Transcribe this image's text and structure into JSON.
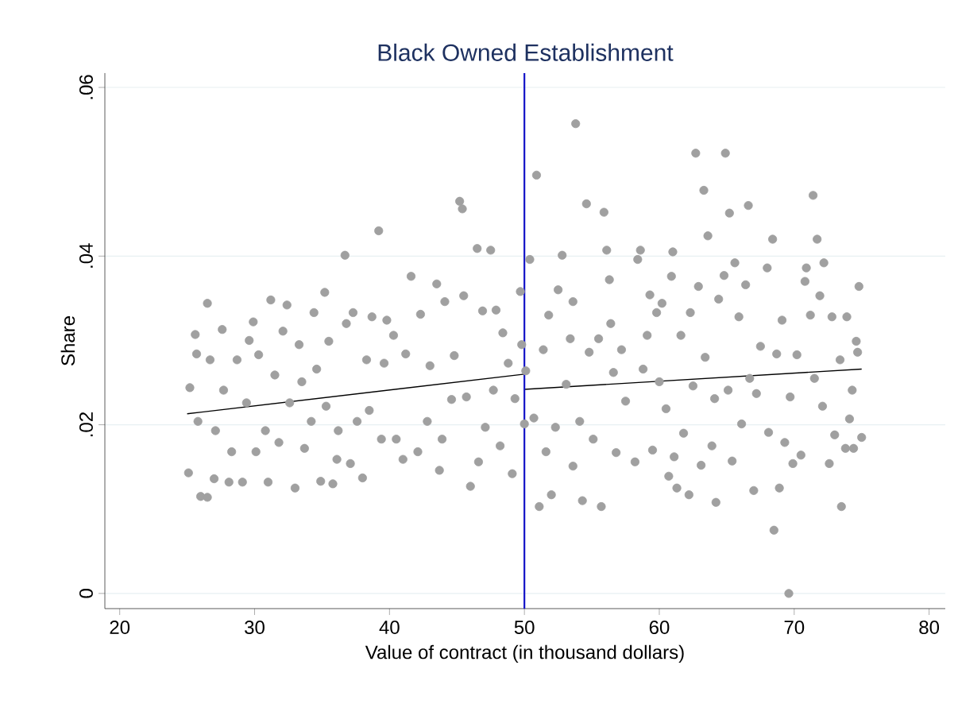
{
  "chart_data": {
    "type": "scatter",
    "title": "Black Owned Establishment",
    "xlabel": "Value of contract (in thousand dollars)",
    "ylabel": "Share",
    "xlim": [
      18.9,
      81.2
    ],
    "ylim": [
      -0.0018,
      0.0617
    ],
    "xticks": [
      20,
      30,
      40,
      50,
      60,
      70,
      80
    ],
    "yticks": [
      0,
      {
        "value": 0.02,
        "label": ".02"
      },
      {
        "value": 0.04,
        "label": ".04"
      },
      {
        "value": 0.06,
        "label": ".06"
      }
    ],
    "grid": "y",
    "ref_lines": [
      {
        "axis": "x",
        "value": 50,
        "color": "#1414c8"
      }
    ],
    "series": [
      {
        "marker": "circle",
        "color": "#a0a0a0",
        "x": [
          25.1,
          25.2,
          25.6,
          25.7,
          25.8,
          26.0,
          26.5,
          26.5,
          26.7,
          27.0,
          27.1,
          27.6,
          27.7,
          28.1,
          28.3,
          28.7,
          29.1,
          29.4,
          29.6,
          29.9,
          30.1,
          30.3,
          30.8,
          31.0,
          31.2,
          31.5,
          31.8,
          32.1,
          32.4,
          32.6,
          33.0,
          33.3,
          33.5,
          33.7,
          34.2,
          34.4,
          34.6,
          34.9,
          35.2,
          35.3,
          35.5,
          35.8,
          36.1,
          36.2,
          36.7,
          36.8,
          37.1,
          37.3,
          37.6,
          38.0,
          38.3,
          38.5,
          38.7,
          39.2,
          39.4,
          39.6,
          39.8,
          40.3,
          40.5,
          41.0,
          41.2,
          41.6,
          42.1,
          42.3,
          42.8,
          43.0,
          43.5,
          43.7,
          43.9,
          44.1,
          44.6,
          44.8,
          45.2,
          45.4,
          45.5,
          45.7,
          46.0,
          46.5,
          46.6,
          46.9,
          47.1,
          47.5,
          47.7,
          47.9,
          48.2,
          48.4,
          48.8,
          49.1,
          49.3,
          49.7,
          49.8,
          50.0,
          50.1,
          50.4,
          50.7,
          50.9,
          51.1,
          51.4,
          51.6,
          51.8,
          52.0,
          52.3,
          52.5,
          52.8,
          53.1,
          53.4,
          53.6,
          53.6,
          53.8,
          54.1,
          54.3,
          54.6,
          54.8,
          55.1,
          55.5,
          55.7,
          55.9,
          56.1,
          56.3,
          56.4,
          56.6,
          56.8,
          57.2,
          57.5,
          58.2,
          58.4,
          58.6,
          58.8,
          59.1,
          59.3,
          59.5,
          59.8,
          60.0,
          60.2,
          60.5,
          60.7,
          60.9,
          61.0,
          61.1,
          61.3,
          61.6,
          61.8,
          62.2,
          62.3,
          62.5,
          62.7,
          62.9,
          63.1,
          63.3,
          63.4,
          63.6,
          63.9,
          64.1,
          64.2,
          64.4,
          64.8,
          64.9,
          65.1,
          65.2,
          65.4,
          65.6,
          65.9,
          66.1,
          66.4,
          66.6,
          66.7,
          67.0,
          67.2,
          67.5,
          68.0,
          68.1,
          68.4,
          68.5,
          68.7,
          68.9,
          69.1,
          69.3,
          69.6,
          69.7,
          69.9,
          70.2,
          70.5,
          70.8,
          70.9,
          71.2,
          71.4,
          71.5,
          71.7,
          71.9,
          72.1,
          72.2,
          72.6,
          72.8,
          73.0,
          73.4,
          73.5,
          73.8,
          73.9,
          74.1,
          74.3,
          74.4,
          74.6,
          74.7,
          74.8,
          75.0
        ],
        "values": [
          0.0143,
          0.0244,
          0.0307,
          0.0284,
          0.0204,
          0.0115,
          0.0114,
          0.0344,
          0.0277,
          0.0136,
          0.0193,
          0.0313,
          0.0241,
          0.0132,
          0.0168,
          0.0277,
          0.0132,
          0.0226,
          0.03,
          0.0322,
          0.0168,
          0.0283,
          0.0193,
          0.0132,
          0.0348,
          0.0259,
          0.0179,
          0.0311,
          0.0342,
          0.0226,
          0.0125,
          0.0295,
          0.0251,
          0.0172,
          0.0204,
          0.0333,
          0.0266,
          0.0133,
          0.0357,
          0.0222,
          0.0299,
          0.013,
          0.0159,
          0.0193,
          0.0401,
          0.032,
          0.0154,
          0.0333,
          0.0204,
          0.0137,
          0.0277,
          0.0217,
          0.0328,
          0.043,
          0.0183,
          0.0273,
          0.0324,
          0.0306,
          0.0183,
          0.0159,
          0.0284,
          0.0376,
          0.0168,
          0.0331,
          0.0204,
          0.027,
          0.0367,
          0.0146,
          0.0183,
          0.0346,
          0.023,
          0.0282,
          0.0465,
          0.0456,
          0.0353,
          0.0233,
          0.0127,
          0.0409,
          0.0156,
          0.0335,
          0.0197,
          0.0407,
          0.0241,
          0.0336,
          0.0175,
          0.0309,
          0.0273,
          0.0142,
          0.0231,
          0.0358,
          0.0295,
          0.0201,
          0.0264,
          0.0396,
          0.0208,
          0.0496,
          0.0103,
          0.0289,
          0.0168,
          0.033,
          0.0117,
          0.0197,
          0.036,
          0.0401,
          0.0248,
          0.0302,
          0.0346,
          0.0151,
          0.0557,
          0.0204,
          0.011,
          0.0462,
          0.0286,
          0.0183,
          0.0302,
          0.0103,
          0.0452,
          0.0407,
          0.0372,
          0.032,
          0.0262,
          0.0167,
          0.0289,
          0.0228,
          0.0156,
          0.0396,
          0.0407,
          0.0266,
          0.0306,
          0.0354,
          0.017,
          0.0333,
          0.0251,
          0.0344,
          0.0219,
          0.0139,
          0.0376,
          0.0405,
          0.0162,
          0.0125,
          0.0306,
          0.019,
          0.0117,
          0.0333,
          0.0246,
          0.0522,
          0.0364,
          0.0152,
          0.0478,
          0.028,
          0.0424,
          0.0175,
          0.0231,
          0.0108,
          0.0349,
          0.0377,
          0.0522,
          0.0241,
          0.0451,
          0.0157,
          0.0392,
          0.0328,
          0.0201,
          0.0366,
          0.046,
          0.0255,
          0.0122,
          0.0237,
          0.0293,
          0.0386,
          0.0191,
          0.042,
          0.0075,
          0.0284,
          0.0125,
          0.0324,
          0.0179,
          0.0,
          0.0233,
          0.0154,
          0.0283,
          0.0164,
          0.037,
          0.0386,
          0.033,
          0.0472,
          0.0255,
          0.042,
          0.0353,
          0.0222,
          0.0392,
          0.0154,
          0.0328,
          0.0188,
          0.0277,
          0.0103,
          0.0172,
          0.0328,
          0.0207,
          0.0241,
          0.0172,
          0.0299,
          0.0286,
          0.0364,
          0.0185
        ]
      },
      {
        "type": "line",
        "marker": "none",
        "color": "#000000",
        "x": [
          25,
          50
        ],
        "values": [
          0.0213,
          0.026
        ]
      },
      {
        "type": "line",
        "marker": "none",
        "color": "#000000",
        "x": [
          50,
          75
        ],
        "values": [
          0.0242,
          0.0266
        ]
      }
    ]
  }
}
